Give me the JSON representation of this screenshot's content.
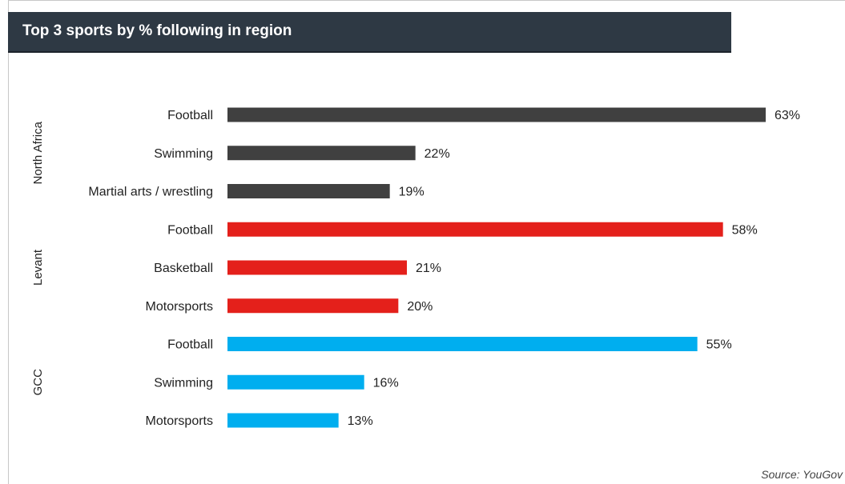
{
  "chart_data": {
    "type": "bar",
    "orientation": "horizontal",
    "title": "Top 3 sports by % following in region",
    "source": "Source: YouGov",
    "xlim": [
      0,
      63
    ],
    "groups": [
      {
        "name": "North Africa",
        "color": "#404040",
        "categories": [
          "Football",
          "Swimming",
          "Martial arts / wrestling"
        ],
        "values": [
          63,
          22,
          19
        ],
        "labels": [
          "63%",
          "22%",
          "19%"
        ]
      },
      {
        "name": "Levant",
        "color": "#e4201b",
        "categories": [
          "Football",
          "Basketball",
          "Motorsports"
        ],
        "values": [
          58,
          21,
          20
        ],
        "labels": [
          "58%",
          "21%",
          "20%"
        ]
      },
      {
        "name": "GCC",
        "color": "#00aeef",
        "categories": [
          "Football",
          "Swimming",
          "Motorsports"
        ],
        "values": [
          55,
          16,
          13
        ],
        "labels": [
          "55%",
          "16%",
          "13%"
        ]
      }
    ]
  }
}
